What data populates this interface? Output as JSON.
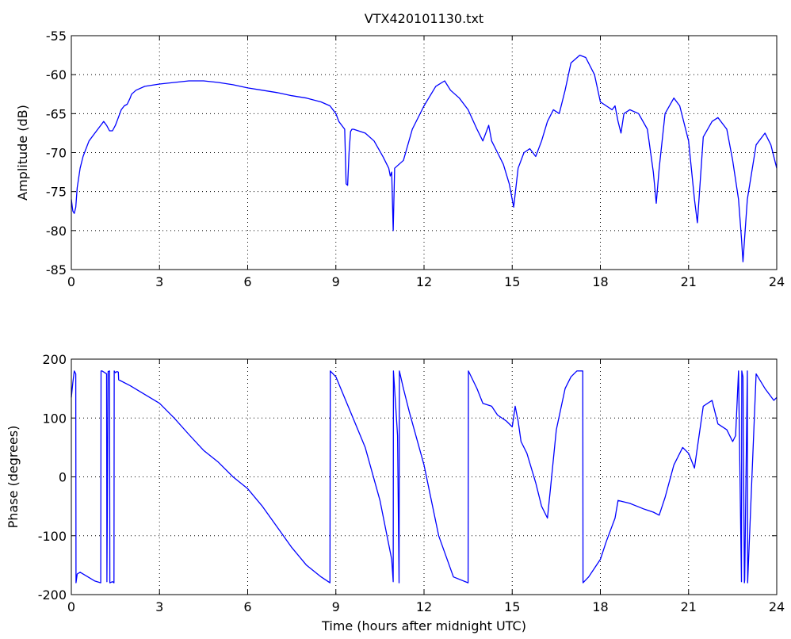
{
  "chart_data": [
    {
      "type": "line",
      "title": "VTX420101130.txt",
      "xlabel": "",
      "ylabel": "Amplitude (dB)",
      "xlim": [
        0,
        24
      ],
      "ylim": [
        -85,
        -55
      ],
      "xticks": [
        "0",
        "3",
        "6",
        "9",
        "12",
        "15",
        "18",
        "21",
        "24"
      ],
      "yticks": [
        "-55",
        "-60",
        "-65",
        "-70",
        "-75",
        "-80",
        "-85"
      ],
      "grid": true,
      "color": "#0000ff",
      "series": [
        {
          "x": [
            0,
            0.05,
            0.1,
            0.15,
            0.2,
            0.3,
            0.4,
            0.5,
            0.6,
            0.8,
            1.0,
            1.1,
            1.2,
            1.3,
            1.4,
            1.5,
            1.6,
            1.7,
            1.8,
            1.9,
            2.0,
            2.05,
            2.2,
            2.5,
            3.0,
            3.5,
            4.0,
            4.5,
            5.0,
            5.5,
            6.0,
            6.5,
            7.0,
            7.5,
            8.0,
            8.5,
            8.8,
            9.0,
            9.1,
            9.2,
            9.3,
            9.35,
            9.4,
            9.45,
            9.5,
            9.55,
            9.6,
            10.0,
            10.3,
            10.6,
            10.8,
            10.85,
            10.9,
            10.95,
            11.0,
            11.3,
            11.6,
            12.0,
            12.4,
            12.7,
            12.9,
            13.2,
            13.5,
            13.8,
            14.0,
            14.2,
            14.3,
            14.5,
            14.7,
            14.9,
            15.05,
            15.2,
            15.4,
            15.6,
            15.8,
            16.0,
            16.2,
            16.4,
            16.6,
            16.8,
            17.0,
            17.3,
            17.5,
            17.8,
            18.0,
            18.2,
            18.4,
            18.5,
            18.6,
            18.7,
            18.8,
            19.0,
            19.3,
            19.6,
            19.8,
            19.9,
            20.0,
            20.2,
            20.5,
            20.7,
            21.0,
            21.2,
            21.3,
            21.5,
            21.8,
            22.0,
            22.3,
            22.5,
            22.7,
            22.8,
            22.85,
            23.0,
            23.3,
            23.6,
            23.8,
            24.0
          ],
          "y": [
            -76,
            -77.5,
            -77.8,
            -77,
            -74.5,
            -72,
            -70.5,
            -69.5,
            -68.5,
            -67.5,
            -66.5,
            -66,
            -66.5,
            -67.2,
            -67.2,
            -66.5,
            -65.5,
            -64.5,
            -64,
            -63.8,
            -63,
            -62.5,
            -62,
            -61.5,
            -61.2,
            -61,
            -60.8,
            -60.8,
            -61,
            -61.3,
            -61.7,
            -62,
            -62.3,
            -62.7,
            -63,
            -63.5,
            -64,
            -65,
            -66,
            -66.5,
            -67,
            -74,
            -74.2,
            -70,
            -67.3,
            -67,
            -67,
            -67.5,
            -68.5,
            -70.5,
            -72,
            -73,
            -72.5,
            -80,
            -72,
            -71,
            -67,
            -64,
            -61.5,
            -60.8,
            -62,
            -63,
            -64.5,
            -67,
            -68.5,
            -66.5,
            -68.5,
            -70,
            -71.5,
            -74,
            -77,
            -72,
            -70,
            -69.5,
            -70.5,
            -68.5,
            -66,
            -64.5,
            -65,
            -62,
            -58.5,
            -57.5,
            -57.8,
            -60,
            -63.5,
            -64,
            -64.5,
            -64,
            -66,
            -67.5,
            -65,
            -64.5,
            -65,
            -67,
            -72.5,
            -76.5,
            -72,
            -65,
            -63,
            -64,
            -68.5,
            -76,
            -79,
            -68,
            -66,
            -65.5,
            -67,
            -71,
            -76,
            -81,
            -84,
            -76,
            -69,
            -67.5,
            -69,
            -72
          ]
        }
      ]
    },
    {
      "type": "line",
      "title": "",
      "xlabel": "Time (hours after midnight UTC)",
      "ylabel": "Phase (degrees)",
      "xlim": [
        0,
        24
      ],
      "ylim": [
        -200,
        200
      ],
      "xticks": [
        "0",
        "3",
        "6",
        "9",
        "12",
        "15",
        "18",
        "21",
        "24"
      ],
      "yticks": [
        "200",
        "100",
        "0",
        "-100",
        "-200"
      ],
      "grid": true,
      "color": "#0000ff",
      "series": [
        {
          "x": [
            0,
            0.05,
            0.1,
            0.15,
            0.16,
            0.2,
            0.3,
            0.5,
            0.8,
            1.0,
            1.01,
            1.05,
            1.2,
            1.21,
            1.25,
            1.3,
            1.31,
            1.4,
            1.45,
            1.46,
            1.5,
            1.55,
            1.6,
            1.61,
            2.0,
            2.5,
            3.0,
            3.5,
            4.0,
            4.5,
            5.0,
            5.5,
            6.0,
            6.5,
            7.0,
            7.5,
            8.0,
            8.5,
            8.8,
            8.81,
            9.0,
            9.5,
            10.0,
            10.5,
            10.8,
            10.9,
            10.95,
            10.96,
            11.1,
            11.15,
            11.16,
            11.3,
            11.5,
            12.0,
            12.5,
            13.0,
            13.5,
            13.51,
            13.8,
            14.0,
            14.3,
            14.5,
            14.8,
            15.0,
            15.1,
            15.2,
            15.3,
            15.5,
            15.8,
            16.0,
            16.2,
            16.3,
            16.5,
            16.8,
            17.0,
            17.2,
            17.4,
            17.41,
            17.6,
            17.8,
            18.0,
            18.2,
            18.5,
            18.6,
            19.0,
            19.5,
            19.8,
            20.0,
            20.2,
            20.5,
            20.8,
            21.0,
            21.2,
            21.5,
            21.8,
            22.0,
            22.3,
            22.5,
            22.6,
            22.7,
            22.8,
            22.81,
            22.85,
            22.9,
            22.91,
            23.0,
            23.01,
            23.3,
            23.6,
            23.9,
            24.0
          ],
          "y": [
            135,
            160,
            180,
            175,
            -180,
            -165,
            -162,
            -168,
            -177,
            -180,
            180,
            180,
            175,
            -178,
            179,
            180,
            -180,
            -178,
            -180,
            180,
            177,
            179,
            178,
            165,
            155,
            140,
            125,
            100,
            72,
            45,
            25,
            0,
            -20,
            -50,
            -85,
            -120,
            -150,
            -170,
            -180,
            180,
            170,
            110,
            50,
            -40,
            -115,
            -140,
            -178,
            180,
            70,
            -180,
            180,
            150,
            110,
            20,
            -100,
            -170,
            -180,
            180,
            150,
            125,
            120,
            105,
            95,
            85,
            120,
            95,
            60,
            40,
            -10,
            -50,
            -70,
            -20,
            80,
            150,
            170,
            180,
            180,
            -180,
            -170,
            -155,
            -140,
            -110,
            -70,
            -40,
            -45,
            -55,
            -60,
            -65,
            -35,
            20,
            50,
            40,
            15,
            120,
            130,
            90,
            80,
            60,
            70,
            180,
            -178,
            180,
            170,
            -180,
            -175,
            180,
            -180,
            175,
            150,
            130,
            135
          ]
        }
      ]
    }
  ]
}
